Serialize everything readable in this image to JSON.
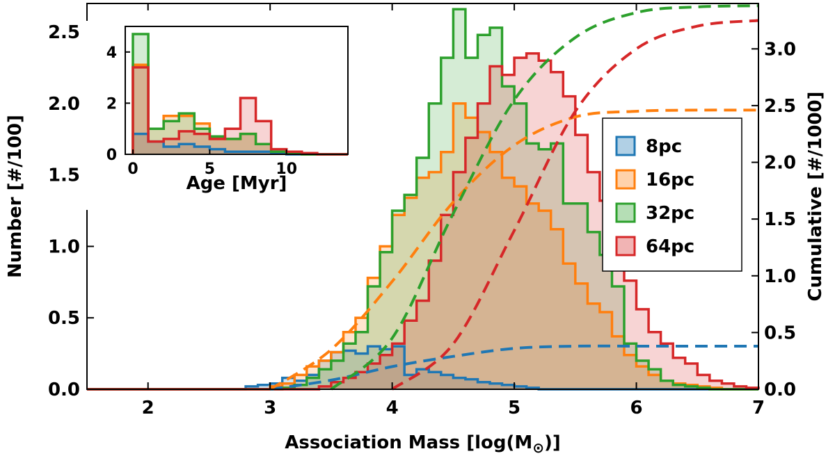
{
  "chart_data": [
    {
      "name": "main",
      "type": "histogram",
      "xlabel_prefix": "Association Mass [log(M",
      "xlabel_sub": "⊙",
      "xlabel_suffix": ")]",
      "ylabel_left": "Number [#/100]",
      "ylabel_right": "Cumulative [#/1000]",
      "xlim": [
        1.5,
        7.0
      ],
      "ylim_left": [
        0,
        2.7
      ],
      "ylim_right": [
        0,
        3.4
      ],
      "xticks": [
        2,
        3,
        4,
        5,
        6,
        7
      ],
      "xtick_labels": [
        "2",
        "3",
        "4",
        "5",
        "6",
        "7"
      ],
      "yticks_left": [
        0,
        0.5,
        1.0,
        1.5,
        2.0,
        2.5
      ],
      "ytick_labels_left": [
        "0.0",
        "0.5",
        "1.0",
        "1.5",
        "2.0",
        "2.5"
      ],
      "yticks_right": [
        0,
        0.5,
        1.0,
        1.5,
        2.0,
        2.5,
        3.0
      ],
      "ytick_labels_right": [
        "0.0",
        "0.5",
        "1.0",
        "1.5",
        "2.0",
        "2.5",
        "3.0"
      ],
      "bin_start": 1.5,
      "bin_width": 0.1,
      "series": [
        {
          "name": "8pc",
          "color": "#1f77b4",
          "hist": [
            0,
            0,
            0,
            0,
            0,
            0,
            0,
            0,
            0,
            0,
            0,
            0,
            0,
            0.02,
            0.03,
            0.04,
            0.08,
            0.06,
            0.1,
            0.2,
            0.26,
            0.27,
            0.25,
            0.3,
            0.28,
            0.3,
            0.1,
            0.14,
            0.12,
            0.1,
            0.08,
            0.07,
            0.05,
            0.04,
            0.03,
            0.02,
            0.01,
            0,
            0,
            0,
            0,
            0,
            0,
            0,
            0,
            0,
            0,
            0,
            0,
            0,
            0,
            0,
            0,
            0,
            0
          ],
          "cumulative_x": [
            3.0,
            3.5,
            4.0,
            4.5,
            5.0,
            5.5,
            6.0,
            6.5,
            7.0
          ],
          "cumulative_y": [
            0.0,
            0.08,
            0.2,
            0.29,
            0.36,
            0.38,
            0.38,
            0.38,
            0.38
          ]
        },
        {
          "name": "16pc",
          "color": "#ff7f0e",
          "hist": [
            0,
            0,
            0,
            0,
            0,
            0,
            0,
            0,
            0,
            0,
            0,
            0,
            0,
            0,
            0,
            0.02,
            0.04,
            0.1,
            0.16,
            0.2,
            0.26,
            0.4,
            0.5,
            0.78,
            1.0,
            1.22,
            1.34,
            1.48,
            1.52,
            1.66,
            2.0,
            1.9,
            1.8,
            1.66,
            1.48,
            1.42,
            1.3,
            1.25,
            1.12,
            0.88,
            0.74,
            0.6,
            0.54,
            0.37,
            0.24,
            0.16,
            0.1,
            0.06,
            0.04,
            0.03,
            0.02,
            0.01,
            0,
            0,
            0
          ],
          "cumulative_x": [
            3.0,
            3.5,
            4.0,
            4.5,
            5.0,
            5.5,
            6.0,
            6.5,
            7.0
          ],
          "cumulative_y": [
            0.0,
            0.35,
            0.95,
            1.65,
            2.15,
            2.4,
            2.45,
            2.46,
            2.46
          ]
        },
        {
          "name": "32pc",
          "color": "#2ca02c",
          "hist": [
            0,
            0,
            0,
            0,
            0,
            0,
            0,
            0,
            0,
            0,
            0,
            0,
            0,
            0,
            0,
            0,
            0.01,
            0.03,
            0.08,
            0.14,
            0.2,
            0.32,
            0.4,
            0.72,
            0.96,
            1.25,
            1.36,
            1.62,
            2.0,
            2.32,
            2.66,
            2.32,
            2.48,
            2.53,
            2.12,
            2.0,
            1.72,
            1.68,
            1.72,
            1.3,
            1.3,
            1.1,
            0.94,
            0.72,
            0.32,
            0.2,
            0.14,
            0.06,
            0.03,
            0.02,
            0.01,
            0,
            0,
            0,
            0
          ],
          "cumulative_x": [
            3.5,
            4.0,
            4.5,
            5.0,
            5.5,
            6.0,
            6.5,
            7.0
          ],
          "cumulative_y": [
            0.0,
            0.45,
            1.55,
            2.55,
            3.1,
            3.32,
            3.37,
            3.38
          ]
        },
        {
          "name": "64pc",
          "color": "#d62728",
          "hist": [
            0,
            0,
            0,
            0,
            0,
            0,
            0,
            0,
            0,
            0,
            0,
            0,
            0,
            0,
            0,
            0,
            0,
            0,
            0,
            0.02,
            0.05,
            0.08,
            0.12,
            0.18,
            0.24,
            0.32,
            0.48,
            0.62,
            0.9,
            1.22,
            1.52,
            1.76,
            2.0,
            2.26,
            2.2,
            2.32,
            2.35,
            2.3,
            2.22,
            2.05,
            1.78,
            1.52,
            1.32,
            1.0,
            0.76,
            0.56,
            0.4,
            0.32,
            0.22,
            0.18,
            0.1,
            0.06,
            0.04,
            0.02,
            0.01
          ],
          "cumulative_x": [
            4.0,
            4.5,
            5.0,
            5.5,
            6.0,
            6.5,
            7.0
          ],
          "cumulative_y": [
            0.0,
            0.4,
            1.4,
            2.45,
            3.0,
            3.2,
            3.25
          ]
        }
      ],
      "legend": [
        "8pc",
        "16pc",
        "32pc",
        "64pc"
      ],
      "legend_position": "right"
    },
    {
      "name": "inset",
      "type": "histogram",
      "xlabel": "Age [Myr]",
      "xlim": [
        -0.5,
        14.0
      ],
      "ylim": [
        0,
        5.0
      ],
      "xticks": [
        0,
        5,
        10
      ],
      "xtick_labels": [
        "0",
        "5",
        "10"
      ],
      "yticks": [
        0,
        2,
        4
      ],
      "ytick_labels": [
        "0",
        "2",
        "4"
      ],
      "bin_start": 0,
      "bin_width": 1.0,
      "series": [
        {
          "name": "8pc",
          "color": "#1f77b4",
          "hist": [
            0.8,
            0.5,
            0.3,
            0.4,
            0.3,
            0.2,
            0.1,
            0.1,
            0.1,
            0.05,
            0,
            0,
            0,
            0
          ]
        },
        {
          "name": "16pc",
          "color": "#ff7f0e",
          "hist": [
            3.5,
            1.0,
            1.5,
            1.5,
            1.2,
            0.6,
            0.6,
            0.8,
            0.4,
            0.1,
            0.05,
            0,
            0,
            0
          ]
        },
        {
          "name": "32pc",
          "color": "#2ca02c",
          "hist": [
            4.7,
            1.0,
            1.3,
            1.6,
            1.0,
            0.7,
            0.6,
            0.8,
            0.4,
            0.1,
            0.05,
            0,
            0,
            0
          ]
        },
        {
          "name": "64pc",
          "color": "#d62728",
          "hist": [
            3.4,
            0.5,
            0.6,
            0.9,
            0.8,
            0.6,
            1.0,
            2.2,
            1.3,
            0.2,
            0.1,
            0.05,
            0,
            0
          ]
        }
      ]
    }
  ]
}
